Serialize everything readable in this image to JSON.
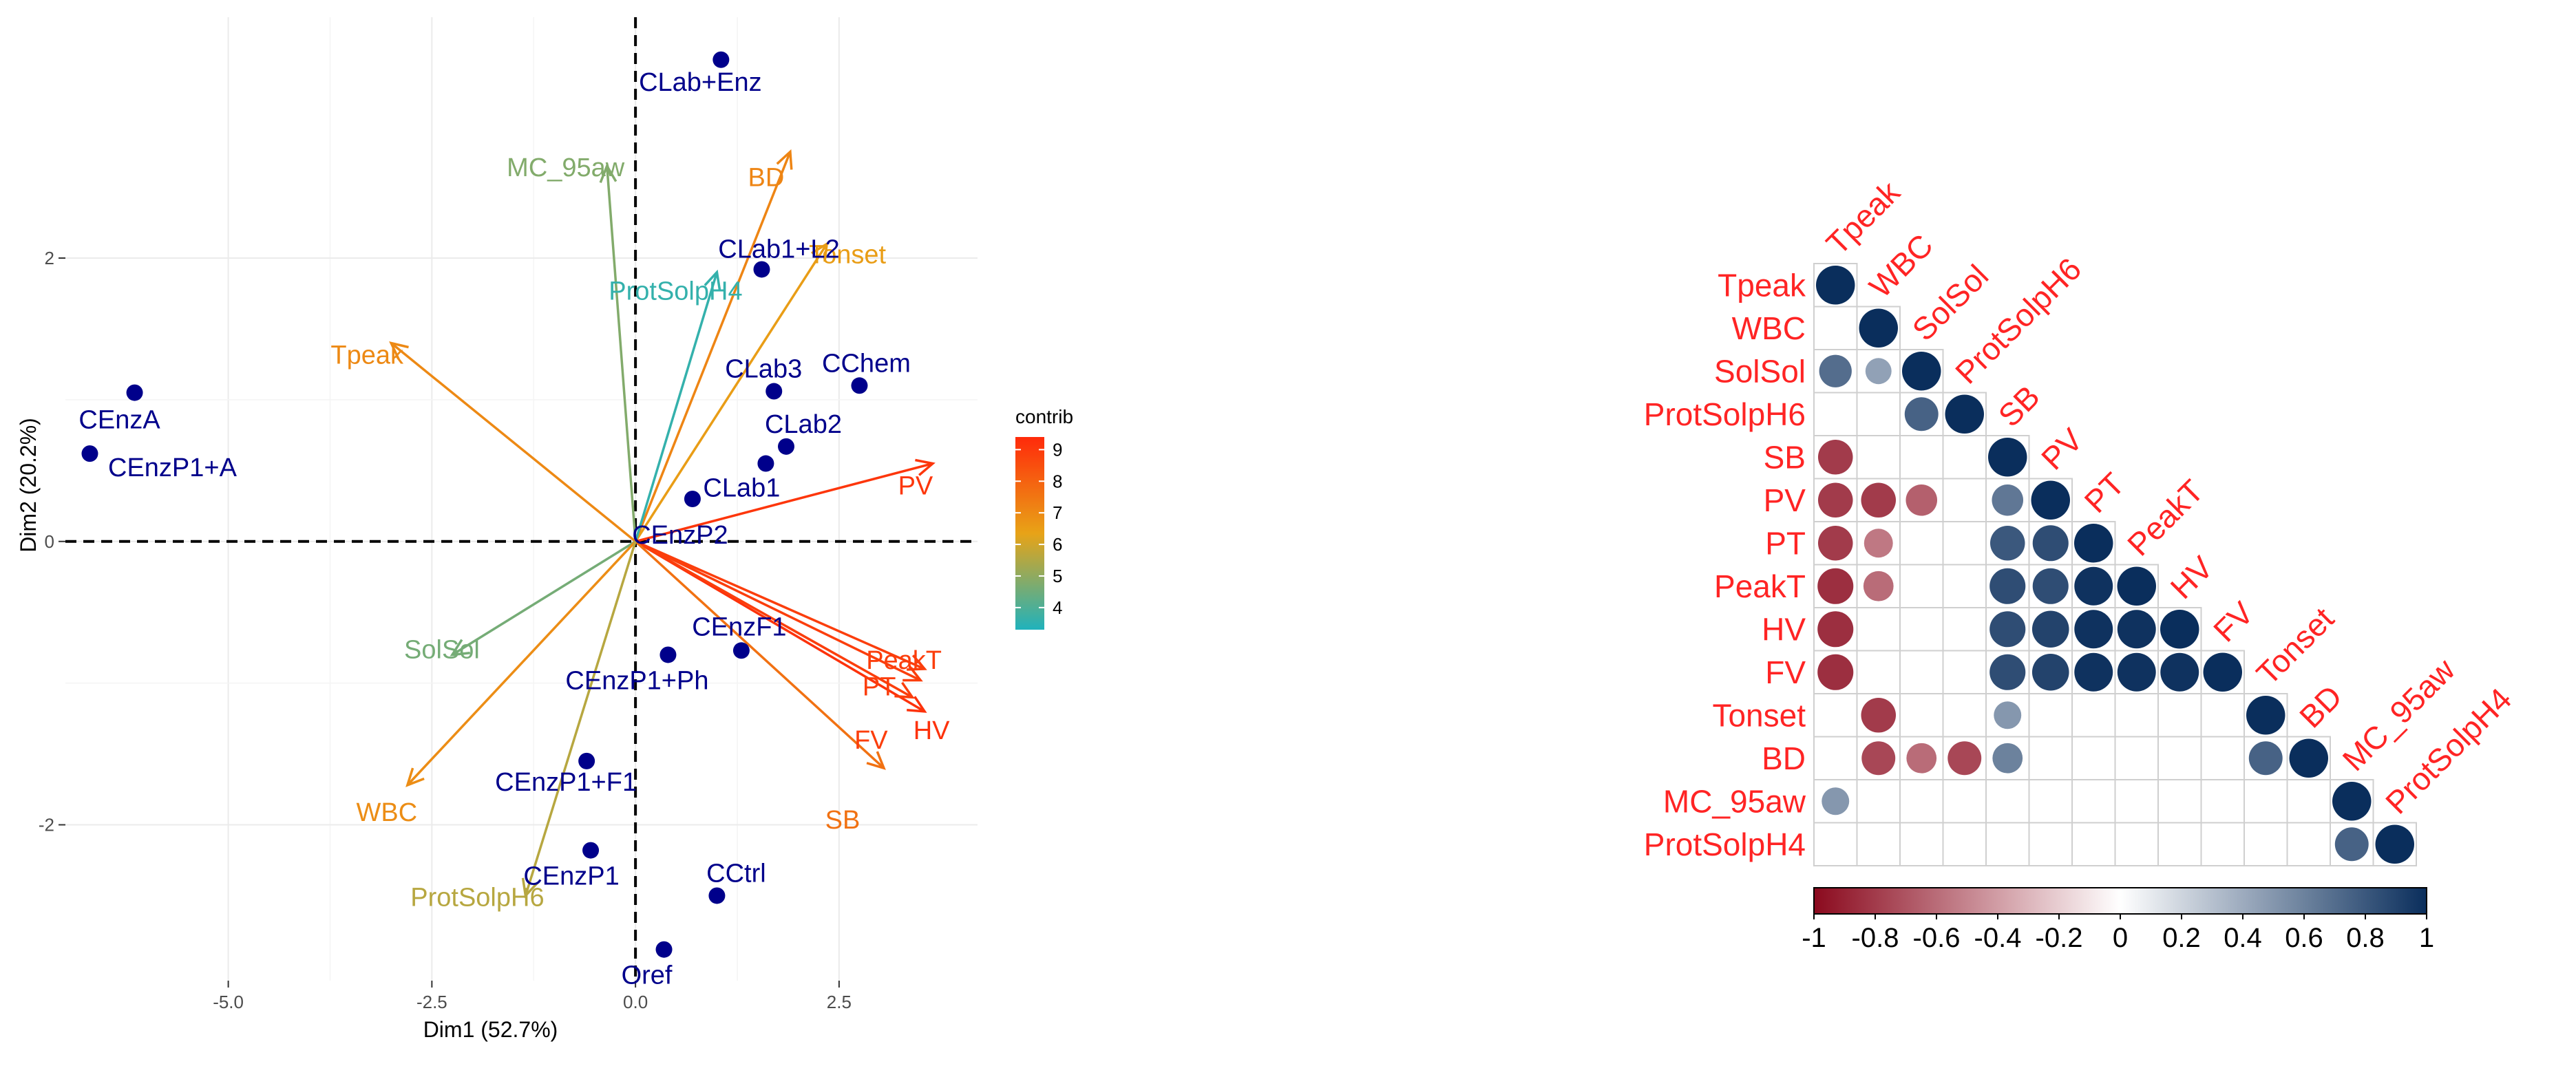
{
  "colors": {
    "point": "#00008B",
    "grid": "#ebebeb",
    "contrib_low": "#20B2BC",
    "contrib_mid": "#E8A317",
    "contrib_high": "#FF2A0A",
    "corr_neg": "#8B0A1E",
    "corr_mid": "#FFFFFF",
    "corr_pos": "#0A2E5C",
    "label_red": "#FF2424"
  },
  "chart_data": [
    {
      "type": "scatter",
      "subtype": "PCA biplot",
      "xlabel": "Dim1 (52.7%)",
      "ylabel": "Dim2 (20.2%)",
      "xlim": [
        -7.0,
        4.2
      ],
      "ylim": [
        -3.1,
        3.7
      ],
      "xticks": [
        -5.0,
        -2.5,
        0.0,
        2.5
      ],
      "xtick_labels": [
        "-5.0",
        "-2.5",
        "0.0",
        "2.5"
      ],
      "yticks": [
        -2,
        0,
        2
      ],
      "ytick_labels": [
        "-2",
        "0",
        "2"
      ],
      "legend": {
        "title": "contrib",
        "range": [
          3.3,
          9.4
        ],
        "ticks": [
          4,
          5,
          6,
          7,
          8,
          9
        ],
        "tick_labels": [
          "4",
          "5",
          "6",
          "7",
          "8",
          "9"
        ],
        "position": "right"
      },
      "individuals": [
        {
          "name": "CLab+Enz",
          "x": 1.05,
          "y": 3.4
        },
        {
          "name": "CLab1+L2",
          "x": 1.55,
          "y": 1.92
        },
        {
          "name": "CChem",
          "x": 2.75,
          "y": 1.1
        },
        {
          "name": "CLab3",
          "x": 1.7,
          "y": 1.06
        },
        {
          "name": "CLab2",
          "x": 1.85,
          "y": 0.67
        },
        {
          "name": "CLab1",
          "x": 1.6,
          "y": 0.55
        },
        {
          "name": "CEnzP2",
          "x": 0.7,
          "y": 0.3
        },
        {
          "name": "CEnzA",
          "x": -6.15,
          "y": 1.05
        },
        {
          "name": "CEnzP1+A",
          "x": -6.7,
          "y": 0.62
        },
        {
          "name": "CEnzF1",
          "x": 1.3,
          "y": -0.77
        },
        {
          "name": "CEnzP1+Ph",
          "x": 0.4,
          "y": -0.8
        },
        {
          "name": "CEnzP1+F1",
          "x": -0.6,
          "y": -1.55
        },
        {
          "name": "CEnzP1",
          "x": -0.55,
          "y": -2.18
        },
        {
          "name": "CCtrl",
          "x": 1.0,
          "y": -2.5
        },
        {
          "name": "Oref",
          "x": 0.35,
          "y": -2.88
        }
      ],
      "variables": [
        {
          "name": "BD",
          "x": 1.9,
          "y": 2.75,
          "contrib": 7.1
        },
        {
          "name": "Tonset",
          "x": 2.35,
          "y": 2.1,
          "contrib": 6.5
        },
        {
          "name": "MC_95aw",
          "x": -0.35,
          "y": 2.65,
          "contrib": 4.8
        },
        {
          "name": "ProtSolpH4",
          "x": 1.0,
          "y": 1.9,
          "contrib": 3.6
        },
        {
          "name": "Tpeak",
          "x": -3.0,
          "y": 1.4,
          "contrib": 7.0
        },
        {
          "name": "PV",
          "x": 3.65,
          "y": 0.55,
          "contrib": 9.1
        },
        {
          "name": "SolSol",
          "x": -2.25,
          "y": -0.8,
          "contrib": 4.6
        },
        {
          "name": "PeakT",
          "x": 3.55,
          "y": -0.9,
          "contrib": 8.9
        },
        {
          "name": "PT",
          "x": 3.5,
          "y": -0.98,
          "contrib": 8.9
        },
        {
          "name": "HV",
          "x": 3.55,
          "y": -1.2,
          "contrib": 9.2
        },
        {
          "name": "FV",
          "x": 3.4,
          "y": -1.1,
          "contrib": 8.9
        },
        {
          "name": "SB",
          "x": 3.05,
          "y": -1.6,
          "contrib": 7.6
        },
        {
          "name": "WBC",
          "x": -2.8,
          "y": -1.72,
          "contrib": 6.9
        },
        {
          "name": "ProtSolpH6",
          "x": -1.35,
          "y": -2.5,
          "contrib": 5.6
        }
      ]
    },
    {
      "type": "heatmap",
      "subtype": "correlation matrix (lower triangle, circles)",
      "variables": [
        "Tpeak",
        "WBC",
        "SolSol",
        "ProtSolpH6",
        "SB",
        "PV",
        "PT",
        "PeakT",
        "HV",
        "FV",
        "Tonset",
        "BD",
        "MC_95aw",
        "ProtSolpH4"
      ],
      "colorbar": {
        "range": [
          -1,
          1
        ],
        "ticks": [
          -1,
          -0.8,
          -0.6,
          -0.4,
          -0.2,
          0,
          0.2,
          0.4,
          0.6,
          0.8,
          1
        ],
        "tick_labels": [
          "-1",
          "-0.8",
          "-0.6",
          "-0.4",
          "-0.2",
          "0",
          "0.2",
          "0.4",
          "0.6",
          "0.8",
          "1"
        ]
      },
      "cells": [
        {
          "row": "Tpeak",
          "col": "Tpeak",
          "r": 1
        },
        {
          "row": "WBC",
          "col": "WBC",
          "r": 1
        },
        {
          "row": "SolSol",
          "col": "Tpeak",
          "r": 0.7
        },
        {
          "row": "SolSol",
          "col": "WBC",
          "r": 0.45
        },
        {
          "row": "SolSol",
          "col": "SolSol",
          "r": 1
        },
        {
          "row": "ProtSolpH6",
          "col": "SolSol",
          "r": 0.75
        },
        {
          "row": "ProtSolpH6",
          "col": "ProtSolpH6",
          "r": 1
        },
        {
          "row": "SB",
          "col": "Tpeak",
          "r": -0.8
        },
        {
          "row": "SB",
          "col": "SB",
          "r": 1
        },
        {
          "row": "PV",
          "col": "Tpeak",
          "r": -0.8
        },
        {
          "row": "PV",
          "col": "WBC",
          "r": -0.8
        },
        {
          "row": "PV",
          "col": "SolSol",
          "r": -0.65
        },
        {
          "row": "PV",
          "col": "SB",
          "r": 0.65
        },
        {
          "row": "PV",
          "col": "PV",
          "r": 1
        },
        {
          "row": "PT",
          "col": "Tpeak",
          "r": -0.8
        },
        {
          "row": "PT",
          "col": "WBC",
          "r": -0.55
        },
        {
          "row": "PT",
          "col": "SB",
          "r": 0.8
        },
        {
          "row": "PT",
          "col": "PV",
          "r": 0.85
        },
        {
          "row": "PT",
          "col": "PT",
          "r": 1
        },
        {
          "row": "PeakT",
          "col": "Tpeak",
          "r": -0.85
        },
        {
          "row": "PeakT",
          "col": "WBC",
          "r": -0.6
        },
        {
          "row": "PeakT",
          "col": "SB",
          "r": 0.85
        },
        {
          "row": "PeakT",
          "col": "PV",
          "r": 0.85
        },
        {
          "row": "PeakT",
          "col": "PT",
          "r": 0.98
        },
        {
          "row": "PeakT",
          "col": "PeakT",
          "r": 1
        },
        {
          "row": "HV",
          "col": "Tpeak",
          "r": -0.85
        },
        {
          "row": "HV",
          "col": "SB",
          "r": 0.85
        },
        {
          "row": "HV",
          "col": "PV",
          "r": 0.9
        },
        {
          "row": "HV",
          "col": "PT",
          "r": 0.98
        },
        {
          "row": "HV",
          "col": "PeakT",
          "r": 0.98
        },
        {
          "row": "HV",
          "col": "HV",
          "r": 1
        },
        {
          "row": "FV",
          "col": "Tpeak",
          "r": -0.85
        },
        {
          "row": "FV",
          "col": "SB",
          "r": 0.85
        },
        {
          "row": "FV",
          "col": "PV",
          "r": 0.9
        },
        {
          "row": "FV",
          "col": "PT",
          "r": 0.98
        },
        {
          "row": "FV",
          "col": "PeakT",
          "r": 0.98
        },
        {
          "row": "FV",
          "col": "HV",
          "r": 0.98
        },
        {
          "row": "FV",
          "col": "FV",
          "r": 1
        },
        {
          "row": "Tonset",
          "col": "WBC",
          "r": -0.8
        },
        {
          "row": "Tonset",
          "col": "SB",
          "r": 0.5
        },
        {
          "row": "Tonset",
          "col": "Tonset",
          "r": 1
        },
        {
          "row": "BD",
          "col": "WBC",
          "r": -0.75
        },
        {
          "row": "BD",
          "col": "SolSol",
          "r": -0.6
        },
        {
          "row": "BD",
          "col": "ProtSolpH6",
          "r": -0.75
        },
        {
          "row": "BD",
          "col": "SB",
          "r": 0.6
        },
        {
          "row": "BD",
          "col": "Tonset",
          "r": 0.75
        },
        {
          "row": "BD",
          "col": "BD",
          "r": 1
        },
        {
          "row": "MC_95aw",
          "col": "Tpeak",
          "r": 0.5
        },
        {
          "row": "MC_95aw",
          "col": "MC_95aw",
          "r": 1
        },
        {
          "row": "ProtSolpH4",
          "col": "MC_95aw",
          "r": 0.75
        },
        {
          "row": "ProtSolpH4",
          "col": "ProtSolpH4",
          "r": 1
        }
      ]
    }
  ]
}
